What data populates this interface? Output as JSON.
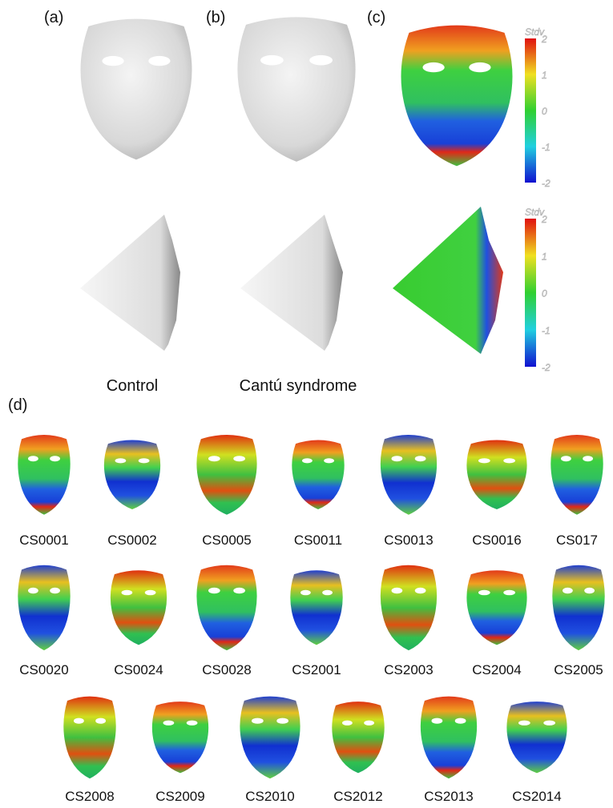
{
  "panels": [
    "(a)",
    "(b)",
    "(c)",
    "(d)"
  ],
  "colorbars": [
    {
      "title": "Stdv",
      "ticks": [
        2,
        1,
        0,
        -1,
        -2
      ]
    },
    {
      "title": "Stdv",
      "ticks": [
        2,
        1,
        0,
        -1,
        -2
      ]
    }
  ],
  "captions": [
    "Control",
    "Cantú syndrome"
  ],
  "subjects": [
    [
      "CS0001",
      "CS0002",
      "CS0005",
      "CS0011",
      "CS0013",
      "CS0016",
      "CS017"
    ],
    [
      "CS0020",
      "CS0024",
      "CS0028",
      "CS2001",
      "CS2003",
      "CS2004",
      "CS2005"
    ],
    [
      "CS2008",
      "CS2009",
      "CS2010",
      "CS2012",
      "CS2013",
      "CS2014"
    ]
  ]
}
